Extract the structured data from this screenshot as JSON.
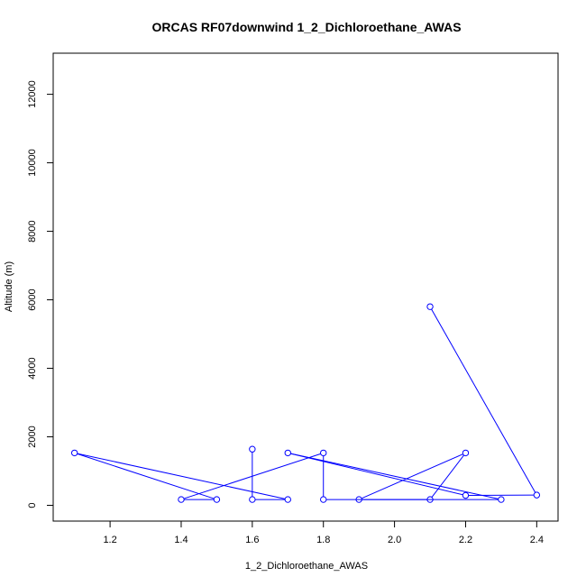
{
  "chart_data": {
    "type": "line",
    "title": "ORCAS RF07downwind 1_2_Dichloroethane_AWAS",
    "xlabel": "1_2_Dichloroethane_AWAS",
    "ylabel": "Altitude (m)",
    "xlim": [
      1.04,
      2.46
    ],
    "ylim": [
      -460,
      13200
    ],
    "xticks": [
      "1.2",
      "1.4",
      "1.6",
      "1.8",
      "2.0",
      "2.2",
      "2.4"
    ],
    "yticks": [
      "0",
      "2000",
      "4000",
      "6000",
      "8000",
      "10000",
      "12000"
    ],
    "grid": false,
    "legend": "none",
    "series": [
      {
        "color": "#0000ff",
        "marker": "open-circle",
        "points": [
          {
            "x": 2.1,
            "y": 5800
          },
          {
            "x": 2.4,
            "y": 300
          },
          {
            "x": 2.2,
            "y": 290
          },
          {
            "x": 1.7,
            "y": 1530
          },
          {
            "x": 2.3,
            "y": 170
          },
          {
            "x": 1.9,
            "y": 170
          },
          {
            "x": 2.2,
            "y": 1530
          },
          {
            "x": 2.1,
            "y": 170
          },
          {
            "x": 1.8,
            "y": 170
          },
          {
            "x": 1.8,
            "y": 1530
          },
          {
            "x": 1.4,
            "y": 170
          },
          {
            "x": 1.5,
            "y": 170
          },
          {
            "x": 1.1,
            "y": 1530
          },
          {
            "x": 1.7,
            "y": 170
          },
          {
            "x": 1.6,
            "y": 170
          },
          {
            "x": 1.6,
            "y": 1640
          }
        ]
      }
    ]
  }
}
